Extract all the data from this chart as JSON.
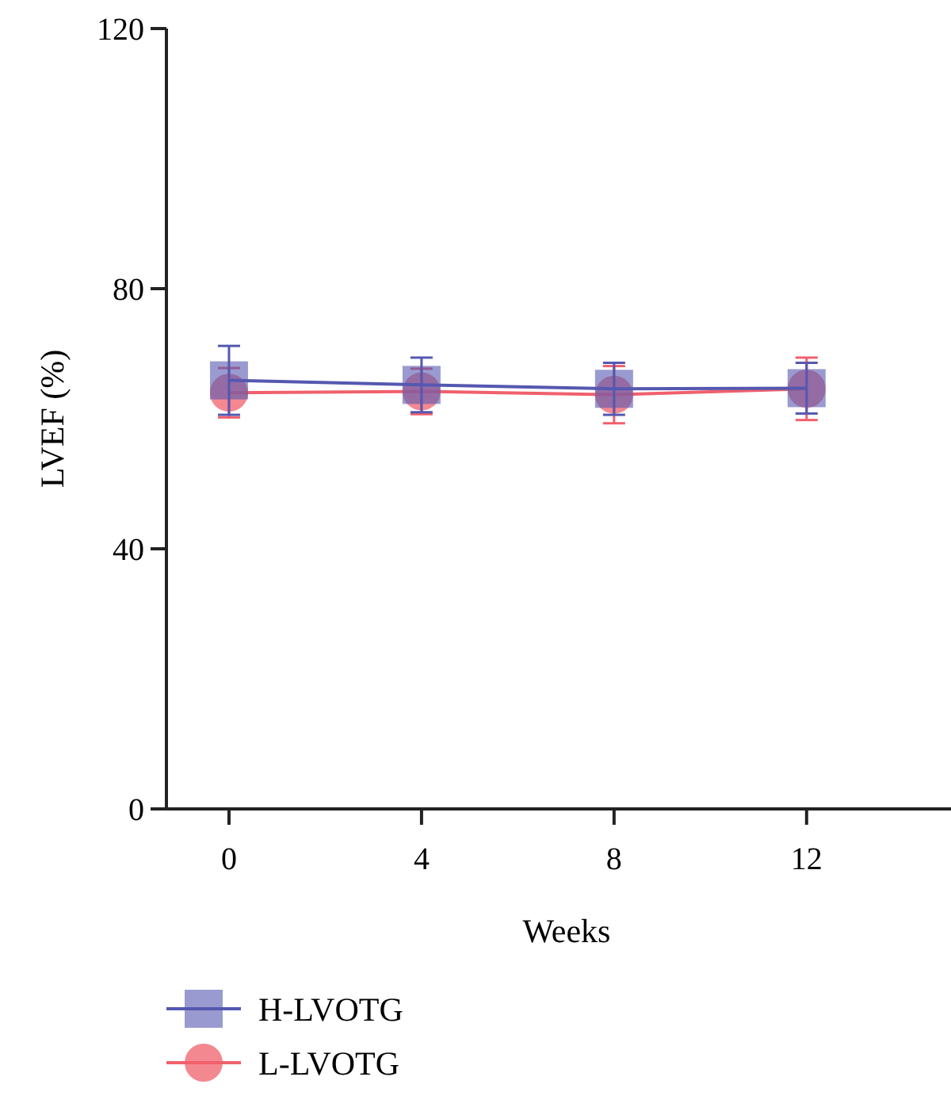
{
  "chart_data": {
    "type": "line",
    "xlabel": "Weeks",
    "ylabel": "LVEF (%)",
    "x": [
      0,
      4,
      8,
      12
    ],
    "xlim": [
      -1.3,
      15
    ],
    "xticks": [
      0,
      4,
      8,
      12
    ],
    "ylim": [
      0,
      120
    ],
    "yticks": [
      0,
      40,
      80,
      120
    ],
    "legend": "bottom left",
    "grid": false,
    "series": [
      {
        "name": "H-LVOTG",
        "color": "#5558b0",
        "marker": "square",
        "values": [
          65.9,
          65.2,
          64.6,
          64.7
        ],
        "errors": [
          5.3,
          4.2,
          4,
          3.9
        ]
      },
      {
        "name": "L-LVOTG",
        "color": "#f0606c",
        "marker": "circle",
        "values": [
          64.0,
          64.2,
          63.7,
          64.6
        ],
        "errors": [
          3.8,
          3.5,
          4.4,
          4.8
        ]
      }
    ]
  }
}
